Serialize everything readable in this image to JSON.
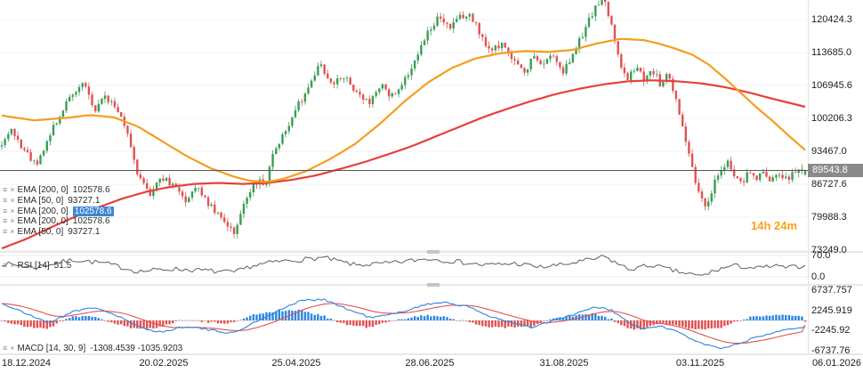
{
  "icons": {
    "menu": "≡",
    "close": "×"
  },
  "countdown": "14h 24m",
  "legend": {
    "main": [
      {
        "text": "EMA [200, 0]",
        "value": "102578.6",
        "selected": false
      },
      {
        "text": "EMA [50, 0]",
        "value": "93727.1",
        "selected": false
      },
      {
        "text": "EMA [200, 0]",
        "value": "102578.6",
        "selected": true
      },
      {
        "text": "EMA [200, 0]",
        "value": "102578.6",
        "selected": false
      },
      {
        "text": "EMA [50, 0]",
        "value": "93727.1",
        "selected": false
      }
    ],
    "rsi": {
      "text": "RSI [14]",
      "value": "51.5"
    },
    "macd": {
      "text": "MACD [14, 30, 9]",
      "value": "-1308.4539  -1035.9203"
    }
  },
  "colors": {
    "up": "#3a9d54",
    "down": "#e05252",
    "ema50": "#f59d1d",
    "ema200": "#e8403d",
    "rsi": "#5f5f5f",
    "macd": "#2e86de",
    "signal": "#e85050",
    "hist_up": "#2e86de",
    "hist_down": "#e05050",
    "last_price_line": "#555555",
    "badge_bg": "#8a8a8a",
    "countdown": "#f9a11b"
  },
  "chart_data": {
    "type": "candlestick",
    "candle_count": 250,
    "last_price": 89543.8,
    "price_axis": {
      "labels": [
        "120424.3",
        "113685.0",
        "106945.6",
        "100206.3",
        "93467.0",
        "86727.6",
        "79988.3",
        "73249.0"
      ],
      "ticks": [
        120424.3,
        113685.0,
        106945.6,
        100206.3,
        93467.0,
        86727.6,
        79988.3,
        73249.0
      ],
      "last_price_label": "89543.8"
    },
    "time_axis": {
      "labels": [
        "18.12.2024",
        "20.02.2025",
        "25.04.2025",
        "28.06.2025",
        "31.08.2025",
        "03.11.2025",
        "06.01.2026"
      ]
    },
    "overlays": [
      {
        "name": "EMA",
        "params": [
          200,
          0
        ],
        "value": 102578.6
      },
      {
        "name": "EMA",
        "params": [
          50,
          0
        ],
        "value": 93727.1
      }
    ],
    "price_path": [
      [
        0,
        95200
      ],
      [
        0.012,
        97800
      ],
      [
        0.025,
        94500
      ],
      [
        0.042,
        90800
      ],
      [
        0.058,
        96000
      ],
      [
        0.072,
        101000
      ],
      [
        0.088,
        105500
      ],
      [
        0.103,
        107200
      ],
      [
        0.115,
        101500
      ],
      [
        0.128,
        105000
      ],
      [
        0.142,
        102500
      ],
      [
        0.155,
        98000
      ],
      [
        0.17,
        88500
      ],
      [
        0.183,
        84500
      ],
      [
        0.198,
        88500
      ],
      [
        0.212,
        86500
      ],
      [
        0.228,
        83500
      ],
      [
        0.243,
        86500
      ],
      [
        0.258,
        82500
      ],
      [
        0.272,
        79800
      ],
      [
        0.29,
        76800
      ],
      [
        0.302,
        83000
      ],
      [
        0.315,
        87500
      ],
      [
        0.328,
        86500
      ],
      [
        0.338,
        93500
      ],
      [
        0.352,
        97500
      ],
      [
        0.368,
        102500
      ],
      [
        0.383,
        107000
      ],
      [
        0.397,
        111200
      ],
      [
        0.412,
        107000
      ],
      [
        0.428,
        109200
      ],
      [
        0.443,
        104500
      ],
      [
        0.458,
        103800
      ],
      [
        0.472,
        107000
      ],
      [
        0.487,
        104500
      ],
      [
        0.502,
        108500
      ],
      [
        0.518,
        113500
      ],
      [
        0.532,
        118500
      ],
      [
        0.545,
        121300
      ],
      [
        0.557,
        118200
      ],
      [
        0.57,
        120800
      ],
      [
        0.583,
        121800
      ],
      [
        0.597,
        117000
      ],
      [
        0.61,
        113800
      ],
      [
        0.623,
        115800
      ],
      [
        0.637,
        112000
      ],
      [
        0.65,
        109200
      ],
      [
        0.662,
        112800
      ],
      [
        0.673,
        110500
      ],
      [
        0.685,
        113800
      ],
      [
        0.697,
        109200
      ],
      [
        0.71,
        112500
      ],
      [
        0.723,
        117500
      ],
      [
        0.737,
        122500
      ],
      [
        0.75,
        124800
      ],
      [
        0.76,
        118500
      ],
      [
        0.77,
        111500
      ],
      [
        0.78,
        108200
      ],
      [
        0.79,
        111000
      ],
      [
        0.8,
        107500
      ],
      [
        0.81,
        110200
      ],
      [
        0.82,
        107000
      ],
      [
        0.828,
        109800
      ],
      [
        0.838,
        104800
      ],
      [
        0.848,
        98500
      ],
      [
        0.858,
        91500
      ],
      [
        0.868,
        84500
      ],
      [
        0.877,
        81300
      ],
      [
        0.886,
        86500
      ],
      [
        0.895,
        89800
      ],
      [
        0.903,
        91300
      ],
      [
        0.912,
        88200
      ],
      [
        0.921,
        87000
      ],
      [
        0.93,
        89800
      ],
      [
        0.939,
        87600
      ],
      [
        0.948,
        89200
      ],
      [
        0.957,
        86900
      ],
      [
        0.966,
        88600
      ],
      [
        0.975,
        87400
      ],
      [
        0.985,
        88900
      ],
      [
        1,
        89543.8
      ]
    ],
    "ema50_path": [
      [
        0,
        100800
      ],
      [
        0.04,
        99800
      ],
      [
        0.08,
        100300
      ],
      [
        0.11,
        100900
      ],
      [
        0.14,
        100400
      ],
      [
        0.17,
        98500
      ],
      [
        0.2,
        95500
      ],
      [
        0.23,
        92500
      ],
      [
        0.26,
        90000
      ],
      [
        0.29,
        88200
      ],
      [
        0.31,
        87400
      ],
      [
        0.33,
        87200
      ],
      [
        0.35,
        87800
      ],
      [
        0.38,
        89500
      ],
      [
        0.41,
        92000
      ],
      [
        0.44,
        95000
      ],
      [
        0.47,
        99000
      ],
      [
        0.5,
        103500
      ],
      [
        0.53,
        107500
      ],
      [
        0.56,
        110500
      ],
      [
        0.59,
        112500
      ],
      [
        0.62,
        113500
      ],
      [
        0.65,
        114000
      ],
      [
        0.68,
        113800
      ],
      [
        0.71,
        114200
      ],
      [
        0.74,
        115500
      ],
      [
        0.77,
        116500
      ],
      [
        0.8,
        116200
      ],
      [
        0.82,
        115400
      ],
      [
        0.84,
        114400
      ],
      [
        0.86,
        113200
      ],
      [
        0.88,
        111200
      ],
      [
        0.9,
        108400
      ],
      [
        0.92,
        105400
      ],
      [
        0.94,
        102400
      ],
      [
        0.96,
        99600
      ],
      [
        0.98,
        96600
      ],
      [
        1,
        93727.1
      ]
    ],
    "ema200_path": [
      [
        0,
        73600
      ],
      [
        0.03,
        75500
      ],
      [
        0.06,
        77800
      ],
      [
        0.09,
        80000
      ],
      [
        0.12,
        82000
      ],
      [
        0.15,
        83800
      ],
      [
        0.18,
        85200
      ],
      [
        0.21,
        86200
      ],
      [
        0.24,
        86800
      ],
      [
        0.27,
        87000
      ],
      [
        0.3,
        86800
      ],
      [
        0.33,
        87000
      ],
      [
        0.36,
        87600
      ],
      [
        0.39,
        88500
      ],
      [
        0.42,
        89800
      ],
      [
        0.45,
        91200
      ],
      [
        0.48,
        92800
      ],
      [
        0.51,
        94500
      ],
      [
        0.54,
        96500
      ],
      [
        0.57,
        98500
      ],
      [
        0.6,
        100500
      ],
      [
        0.63,
        102200
      ],
      [
        0.66,
        103800
      ],
      [
        0.69,
        105200
      ],
      [
        0.72,
        106300
      ],
      [
        0.75,
        107200
      ],
      [
        0.78,
        107800
      ],
      [
        0.81,
        108000
      ],
      [
        0.84,
        107800
      ],
      [
        0.87,
        107400
      ],
      [
        0.9,
        106600
      ],
      [
        0.93,
        105500
      ],
      [
        0.96,
        104200
      ],
      [
        1,
        102578.6
      ]
    ],
    "rsi_panel": {
      "name": "RSI",
      "params": [
        14
      ],
      "value": 51.5,
      "axis_labels": [
        "70.0",
        "0.0"
      ],
      "path": [
        [
          0,
          55
        ],
        [
          0.04,
          48
        ],
        [
          0.09,
          62
        ],
        [
          0.13,
          55
        ],
        [
          0.17,
          40
        ],
        [
          0.21,
          45
        ],
        [
          0.25,
          42
        ],
        [
          0.29,
          38
        ],
        [
          0.31,
          50
        ],
        [
          0.34,
          58
        ],
        [
          0.38,
          63
        ],
        [
          0.4,
          66
        ],
        [
          0.44,
          52
        ],
        [
          0.48,
          55
        ],
        [
          0.53,
          64
        ],
        [
          0.57,
          58
        ],
        [
          0.6,
          52
        ],
        [
          0.64,
          55
        ],
        [
          0.67,
          48
        ],
        [
          0.7,
          53
        ],
        [
          0.74,
          64
        ],
        [
          0.75,
          68
        ],
        [
          0.78,
          44
        ],
        [
          0.81,
          52
        ],
        [
          0.84,
          40
        ],
        [
          0.87,
          31
        ],
        [
          0.89,
          43
        ],
        [
          0.91,
          51
        ],
        [
          0.94,
          46
        ],
        [
          0.96,
          50
        ],
        [
          0.98,
          47
        ],
        [
          1,
          51.5
        ]
      ]
    },
    "macd_panel": {
      "name": "MACD",
      "params": [
        14,
        30,
        9
      ],
      "values": [
        -1308.4539,
        -1035.9203
      ],
      "axis_labels": [
        "6737.757",
        "2245.919",
        "-2245.92",
        "-6737.76"
      ],
      "ticks": [
        6737.757,
        2245.919,
        -2245.92,
        -6737.76
      ],
      "path": [
        [
          0,
          3800
        ],
        [
          0.03,
          1500
        ],
        [
          0.06,
          -500
        ],
        [
          0.09,
          2200
        ],
        [
          0.12,
          2800
        ],
        [
          0.15,
          500
        ],
        [
          0.17,
          -1500
        ],
        [
          0.2,
          -2600
        ],
        [
          0.23,
          -1200
        ],
        [
          0.26,
          -2200
        ],
        [
          0.29,
          -2800
        ],
        [
          0.31,
          -800
        ],
        [
          0.34,
          1800
        ],
        [
          0.37,
          4300
        ],
        [
          0.4,
          4800
        ],
        [
          0.43,
          2500
        ],
        [
          0.46,
          600
        ],
        [
          0.49,
          1500
        ],
        [
          0.52,
          3200
        ],
        [
          0.55,
          4200
        ],
        [
          0.58,
          3000
        ],
        [
          0.61,
          800
        ],
        [
          0.64,
          -800
        ],
        [
          0.66,
          -1600
        ],
        [
          0.68,
          -400
        ],
        [
          0.71,
          1200
        ],
        [
          0.74,
          3000
        ],
        [
          0.76,
          2200
        ],
        [
          0.78,
          -500
        ],
        [
          0.8,
          -2000
        ],
        [
          0.82,
          -1200
        ],
        [
          0.84,
          -2500
        ],
        [
          0.86,
          -4200
        ],
        [
          0.88,
          -5600
        ],
        [
          0.9,
          -6200
        ],
        [
          0.92,
          -5000
        ],
        [
          0.94,
          -3600
        ],
        [
          0.96,
          -2600
        ],
        [
          0.98,
          -1800
        ],
        [
          1,
          -1308.5
        ]
      ]
    }
  }
}
